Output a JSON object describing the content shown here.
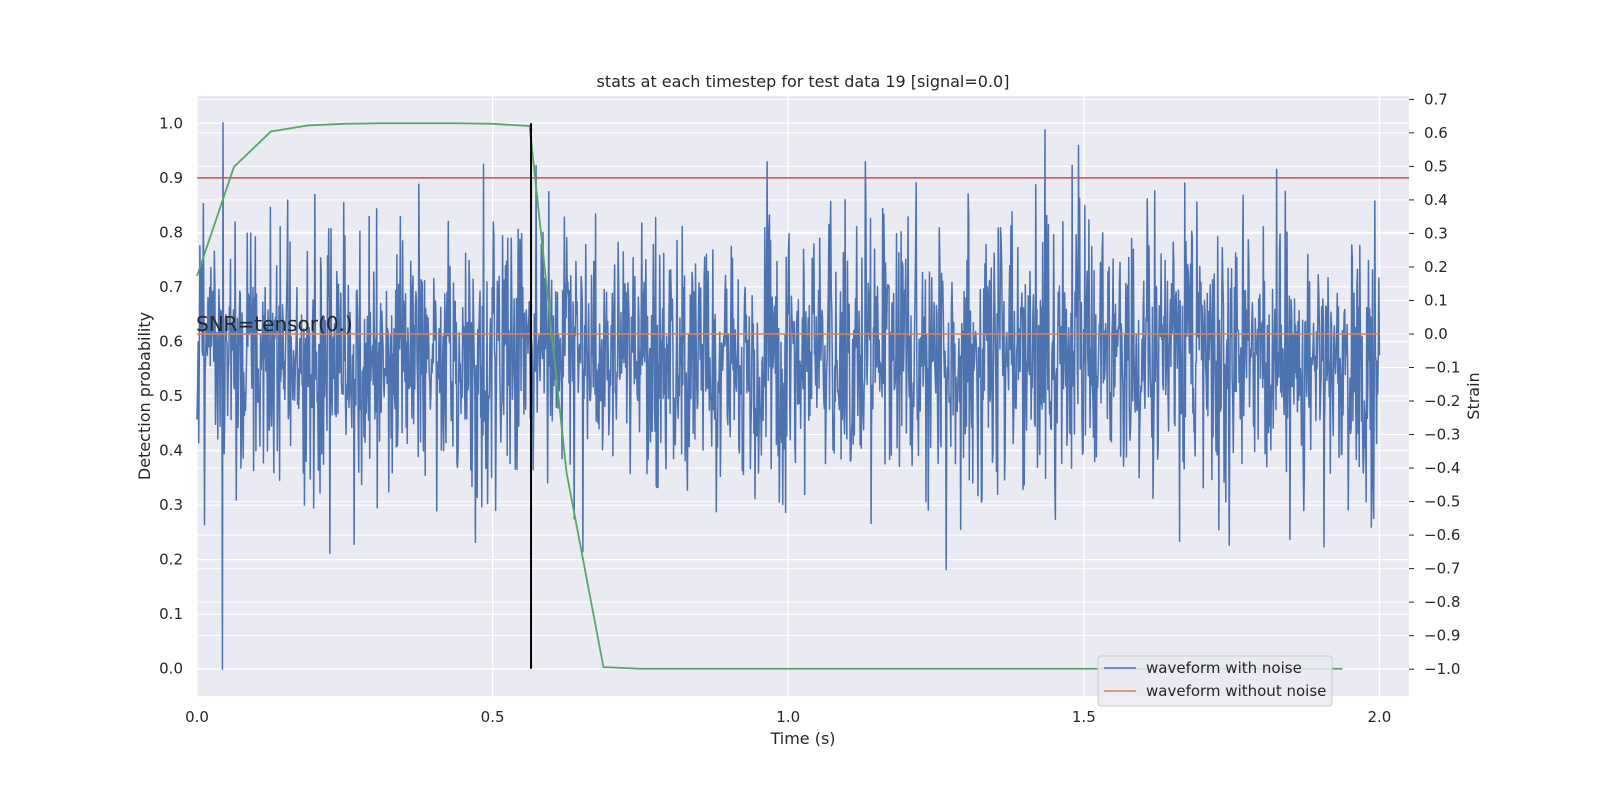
{
  "chart_data": {
    "type": "line",
    "title": "stats at each timestep for test data 19 [signal=0.0]",
    "xlabel": "Time (s)",
    "ylabel": "Detection probability",
    "y2label": "Strain",
    "xlim": [
      0.0,
      2.05
    ],
    "ylim": [
      -0.05,
      1.05
    ],
    "y2lim": [
      -1.08,
      0.71
    ],
    "xticks": [
      "0.0",
      "0.5",
      "1.0",
      "1.5",
      "2.0"
    ],
    "xtick_values": [
      0.0,
      0.5,
      1.0,
      1.5,
      2.0
    ],
    "yticks": [
      "0.0",
      "0.1",
      "0.2",
      "0.3",
      "0.4",
      "0.5",
      "0.6",
      "0.7",
      "0.8",
      "0.9",
      "1.0"
    ],
    "ytick_values": [
      0.0,
      0.1,
      0.2,
      0.3,
      0.4,
      0.5,
      0.6,
      0.7,
      0.8,
      0.9,
      1.0
    ],
    "y2ticks": [
      "0.7",
      "0.6",
      "0.5",
      "0.4",
      "0.3",
      "0.2",
      "0.1",
      "0.0",
      "−0.1",
      "−0.2",
      "−0.3",
      "−0.4",
      "−0.5",
      "−0.6",
      "−0.7",
      "−0.8",
      "−0.9",
      "−1.0"
    ],
    "y2tick_values": [
      0.7,
      0.6,
      0.5,
      0.4,
      0.3,
      0.2,
      0.1,
      0.0,
      -0.1,
      -0.2,
      -0.3,
      -0.4,
      -0.5,
      -0.6,
      -0.7,
      -0.8,
      -0.9,
      -1.0
    ],
    "annotation": "SNR=tensor(0.)",
    "threshold": {
      "y": 0.9,
      "color": "#c44e52"
    },
    "event_line": {
      "x": 0.565,
      "y_range": [
        0.0,
        1.0
      ],
      "color": "#000000"
    },
    "detection_probability": {
      "color": "#55a868",
      "x": [
        0.0,
        0.0625,
        0.125,
        0.1875,
        0.25,
        0.3125,
        0.375,
        0.4375,
        0.5,
        0.5625,
        0.625,
        0.6875,
        0.75,
        0.8125,
        0.875,
        0.9375,
        1.0,
        1.0625,
        1.125,
        1.1875,
        1.25,
        1.3125,
        1.375,
        1.4375,
        1.5,
        1.5625,
        1.625,
        1.6875,
        1.75,
        1.8125,
        1.875,
        1.9375
      ],
      "values": [
        0.72,
        0.92,
        0.985,
        0.996,
        0.999,
        1.0,
        1.0,
        1.0,
        0.999,
        0.995,
        0.36,
        0.003,
        0.0,
        0.0,
        0.0,
        0.0,
        0.0,
        0.0,
        0.0,
        0.0,
        0.0,
        0.0,
        0.0,
        0.0,
        0.0,
        0.0,
        0.0,
        0.0,
        0.0,
        0.0,
        0.0,
        0.0
      ]
    },
    "series": [
      {
        "name": "waveform with noise",
        "axis": "right",
        "color": "#4c72b0",
        "x_range": [
          0.0,
          2.0
        ],
        "n_samples": 2048,
        "amplitude_range": [
          -1.0,
          0.63
        ],
        "seed": 19
      },
      {
        "name": "waveform without noise",
        "axis": "right",
        "color": "#dd8452",
        "x": [
          0.0,
          2.0
        ],
        "values": [
          0.0,
          0.0
        ]
      }
    ],
    "legend_placement": "lower right",
    "grid": true
  }
}
